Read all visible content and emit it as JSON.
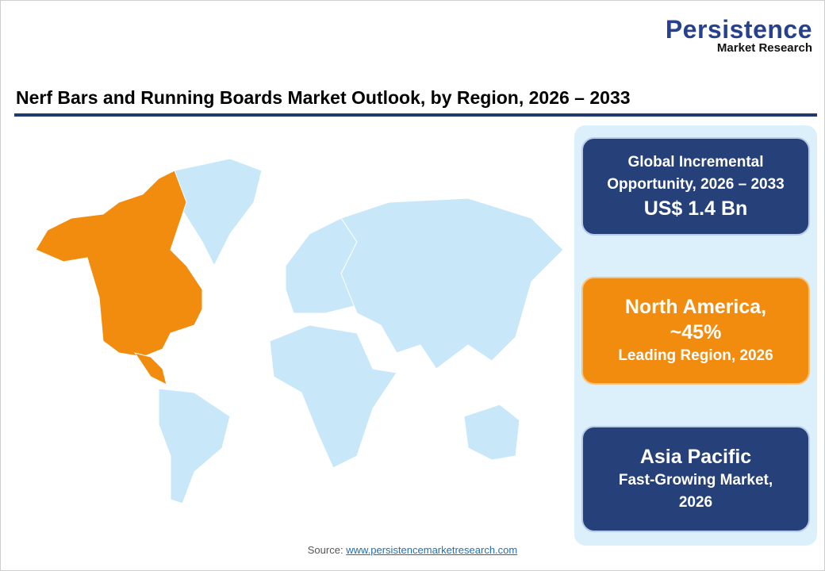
{
  "logo": {
    "main": "Persistence",
    "sub": "Market Research"
  },
  "title": "Nerf Bars and Running Boards Market Outlook, by Region, 2026 – 2033",
  "map": {
    "highlight_region": "North America",
    "highlight_color": "#f28c0f",
    "base_color": "#c8e8fa"
  },
  "cards": [
    {
      "line1": "Global Incremental",
      "line2": "Opportunity, 2026 – 2033",
      "value": "US$ 1.4 Bn",
      "color": "#26417a"
    },
    {
      "line1": "North America,",
      "value": "~45%",
      "line2": "Leading Region, 2026",
      "color": "#f28c0f"
    },
    {
      "line1": "Asia Pacific",
      "line2": "Fast-Growing Market,",
      "line3": "2026",
      "color": "#26417a"
    }
  ],
  "source": {
    "label": "Source:",
    "link": "www.persistencemarketresearch.com"
  }
}
